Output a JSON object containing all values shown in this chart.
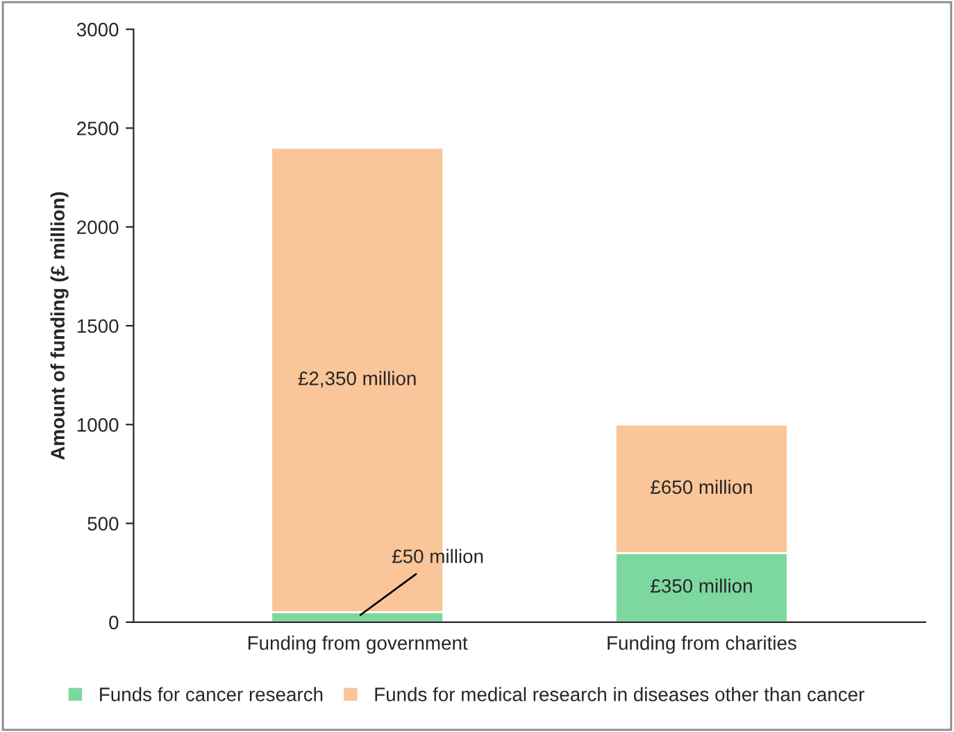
{
  "chart_data": {
    "type": "bar",
    "stacked": true,
    "ylabel": "Amount of funding (£ million)",
    "categories": [
      "Funding from government",
      "Funding from charities"
    ],
    "series": [
      {
        "name": "Funds for cancer research",
        "color": "#7dd8a0",
        "values": [
          50,
          350
        ],
        "value_labels": [
          "£50 million",
          "£350 million"
        ]
      },
      {
        "name": "Funds for medical research in diseases other than cancer",
        "color": "#fac598",
        "values": [
          2350,
          650
        ],
        "value_labels": [
          "£2,350 million",
          "£650 million"
        ]
      }
    ],
    "ylim": [
      0,
      3000
    ],
    "yticks": [
      0,
      500,
      1000,
      1500,
      2000,
      2500,
      3000
    ],
    "grid": false,
    "legend": "bottom"
  }
}
